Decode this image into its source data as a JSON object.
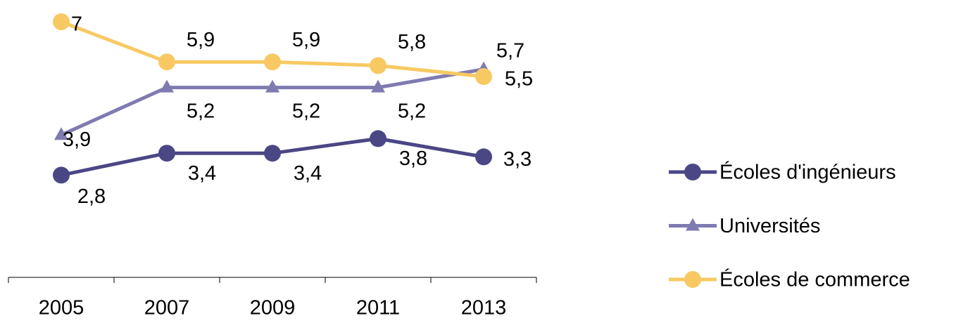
{
  "chart_data": {
    "type": "line",
    "categories": [
      "2005",
      "2007",
      "2009",
      "2011",
      "2013"
    ],
    "ylim": [
      0,
      7.5
    ],
    "series": [
      {
        "name": "Écoles d'ingénieurs",
        "color": "#4b4785",
        "marker": "circle",
        "values": [
          2.8,
          3.4,
          3.4,
          3.8,
          3.3
        ],
        "value_labels": [
          "2,8",
          "3,4",
          "3,4",
          "3,8",
          "3,3"
        ]
      },
      {
        "name": "Universités",
        "color": "#7f7bb1",
        "marker": "triangle",
        "values": [
          3.9,
          5.2,
          5.2,
          5.2,
          5.7
        ],
        "value_labels": [
          "3,9",
          "5,2",
          "5,2",
          "5,2",
          "5,7"
        ]
      },
      {
        "name": "Écoles de commerce",
        "color": "#f8c963",
        "marker": "circle",
        "values": [
          7,
          5.9,
          5.9,
          5.8,
          5.5
        ],
        "value_labels": [
          "7",
          "5,9",
          "5,9",
          "5,8",
          "5,5"
        ]
      }
    ],
    "legend": "right"
  }
}
